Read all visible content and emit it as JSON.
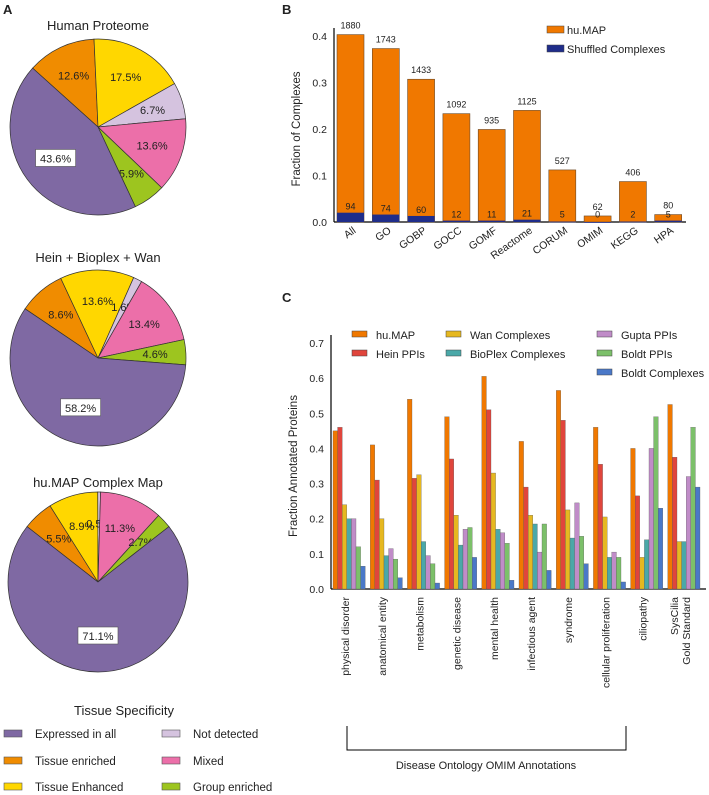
{
  "panels": {
    "a": "A",
    "b": "B",
    "c": "C"
  },
  "chart_data": [
    {
      "type": "pie",
      "panel": "A",
      "legend_title": "Tissue Specificity",
      "categories": [
        "Expressed in all",
        "Tissue enriched",
        "Tissue Enhanced",
        "Not detected",
        "Mixed",
        "Group enriched"
      ],
      "colors": [
        "#7f69a3",
        "#f08c00",
        "#ffd700",
        "#d5c3df",
        "#ec6fa9",
        "#9dc51f"
      ],
      "pies": [
        {
          "title": "Human Proteome",
          "values": [
            43.6,
            12.6,
            17.5,
            6.7,
            13.6,
            5.9
          ],
          "labels": [
            "43.6%",
            "12.6%",
            "17.5%",
            "6.7%",
            "13.6%",
            "5.9%"
          ]
        },
        {
          "title": "Hein + Bioplex + Wan",
          "values": [
            58.2,
            8.6,
            13.6,
            1.6,
            13.4,
            4.6
          ],
          "labels": [
            "58.2%",
            "8.6%",
            "13.6%",
            "1.6%",
            "13.4%",
            "4.6%"
          ]
        },
        {
          "title": "hu.MAP Complex Map",
          "values": [
            71.1,
            5.5,
            8.9,
            0.5,
            11.3,
            2.7
          ],
          "labels": [
            "71.1%",
            "5.5%",
            "8.9%",
            "0.5%",
            "11.3%",
            "2.7%"
          ]
        }
      ]
    },
    {
      "type": "bar",
      "panel": "B",
      "ylabel": "Fraction of Complexes",
      "ylim": [
        0,
        0.44
      ],
      "yticks": [
        "0.0",
        "0.1",
        "0.2",
        "0.3",
        "0.4"
      ],
      "categories": [
        "All",
        "GO",
        "GOBP",
        "GOCC",
        "GOMF",
        "Reactome",
        "CORUM",
        "OMIM",
        "KEGG",
        "HPA"
      ],
      "legend": "top-right",
      "series": [
        {
          "name": "hu.MAP",
          "color": "#f07800",
          "values": [
            0.403,
            0.373,
            0.307,
            0.233,
            0.199,
            0.24,
            0.112,
            0.013,
            0.087,
            0.016
          ],
          "counts": [
            "1880",
            "1743",
            "1433",
            "1092",
            "935",
            "1125",
            "527",
            "62",
            "406",
            "80"
          ]
        },
        {
          "name": "Shuffled Complexes",
          "color": "#1f2d8a",
          "values": [
            0.02,
            0.016,
            0.013,
            0.003,
            0.003,
            0.005,
            0.001,
            0.0,
            0.001,
            0.003
          ],
          "counts": [
            "94",
            "74",
            "60",
            "12",
            "11",
            "21",
            "5",
            "0",
            "2",
            "5"
          ]
        }
      ]
    },
    {
      "type": "bar",
      "panel": "C",
      "ylabel": "Fraction Annotated Proteins",
      "xlabel": "Disease Ontology OMIM Annotations",
      "ylim": [
        0,
        0.7
      ],
      "yticks": [
        "0.0",
        "0.1",
        "0.2",
        "0.3",
        "0.4",
        "0.5",
        "0.6",
        "0.7"
      ],
      "categories": [
        "physical disorder",
        "anatomical entity",
        "metabolism",
        "genetic disease",
        "mental health",
        "infectious agent",
        "syndrome",
        "cellular proliferation",
        "ciliopathy",
        "SysCilia\nGold Standard"
      ],
      "legend": "top",
      "series": [
        {
          "name": "hu.MAP",
          "color": "#f07800",
          "values": [
            0.45,
            0.41,
            0.54,
            0.49,
            0.605,
            0.42,
            0.565,
            0.46,
            0.4,
            0.525
          ]
        },
        {
          "name": "Hein PPIs",
          "color": "#e0453c",
          "values": [
            0.46,
            0.31,
            0.315,
            0.37,
            0.51,
            0.29,
            0.48,
            0.355,
            0.265,
            0.375
          ]
        },
        {
          "name": "Wan Complexes",
          "color": "#e6b820",
          "values": [
            0.24,
            0.2,
            0.325,
            0.21,
            0.33,
            0.21,
            0.225,
            0.205,
            0.09,
            0.135
          ]
        },
        {
          "name": "BioPlex Complexes",
          "color": "#4aa8a8",
          "values": [
            0.2,
            0.095,
            0.135,
            0.125,
            0.17,
            0.185,
            0.145,
            0.09,
            0.14,
            0.135
          ]
        },
        {
          "name": "Gupta PPIs",
          "color": "#c08cc8",
          "values": [
            0.2,
            0.115,
            0.095,
            0.17,
            0.16,
            0.105,
            0.245,
            0.105,
            0.4,
            0.32
          ]
        },
        {
          "name": "Boldt PPIs",
          "color": "#7cc06a",
          "values": [
            0.12,
            0.085,
            0.072,
            0.175,
            0.13,
            0.185,
            0.15,
            0.09,
            0.49,
            0.46
          ]
        },
        {
          "name": "Boldt Complexes",
          "color": "#4a78c8",
          "values": [
            0.065,
            0.032,
            0.017,
            0.09,
            0.025,
            0.053,
            0.072,
            0.02,
            0.23,
            0.29
          ]
        }
      ]
    }
  ]
}
